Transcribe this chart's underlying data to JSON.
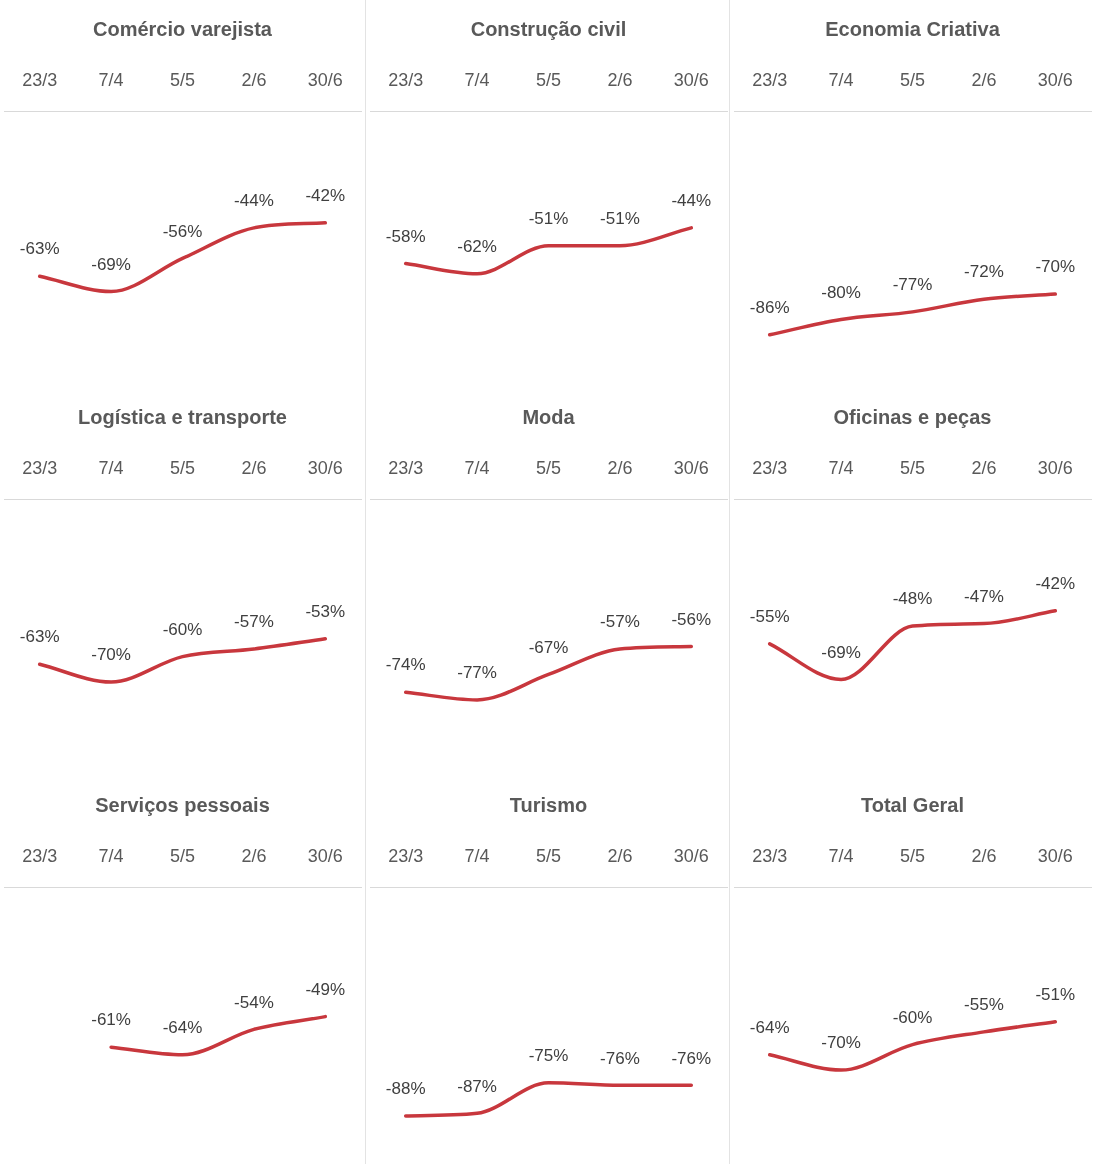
{
  "chart_data": [
    {
      "type": "line",
      "title": "Comércio varejista",
      "categories": [
        "23/3",
        "7/4",
        "5/5",
        "2/6",
        "30/6"
      ],
      "tick_labels": "x",
      "legend": false,
      "series": [
        {
          "color": "#c8373d",
          "values": [
            -63,
            -69,
            -56,
            -44,
            -42
          ],
          "value_labels": [
            "-63%",
            "-69%",
            "-56%",
            "-44%",
            "-42%"
          ]
        }
      ]
    },
    {
      "type": "line",
      "title": "Construção civil",
      "categories": [
        "23/3",
        "7/4",
        "5/5",
        "2/6",
        "30/6"
      ],
      "tick_labels": "x",
      "legend": false,
      "series": [
        {
          "color": "#c8373d",
          "values": [
            -58,
            -62,
            -51,
            -51,
            -44
          ],
          "value_labels": [
            "-58%",
            "-62%",
            "-51%",
            "-51%",
            "-44%"
          ]
        }
      ]
    },
    {
      "type": "line",
      "title": "Economia Criativa",
      "categories": [
        "23/3",
        "7/4",
        "5/5",
        "2/6",
        "30/6"
      ],
      "tick_labels": "x",
      "legend": false,
      "series": [
        {
          "color": "#c8373d",
          "values": [
            -86,
            -80,
            -77,
            -72,
            -70
          ],
          "value_labels": [
            "-86%",
            "-80%",
            "-77%",
            "-72%",
            "-70%"
          ]
        }
      ]
    },
    {
      "type": "line",
      "title": "Logística e transporte",
      "categories": [
        "23/3",
        "7/4",
        "5/5",
        "2/6",
        "30/6"
      ],
      "tick_labels": "x",
      "legend": false,
      "series": [
        {
          "color": "#c8373d",
          "values": [
            -63,
            -70,
            -60,
            -57,
            -53
          ],
          "value_labels": [
            "-63%",
            "-70%",
            "-60%",
            "-57%",
            "-53%"
          ]
        }
      ]
    },
    {
      "type": "line",
      "title": "Moda",
      "categories": [
        "23/3",
        "7/4",
        "5/5",
        "2/6",
        "30/6"
      ],
      "tick_labels": "x",
      "legend": false,
      "series": [
        {
          "color": "#c8373d",
          "values": [
            -74,
            -77,
            -67,
            -57,
            -56
          ],
          "value_labels": [
            "-74%",
            "-77%",
            "-67%",
            "-57%",
            "-56%"
          ]
        }
      ]
    },
    {
      "type": "line",
      "title": "Oficinas e peças",
      "categories": [
        "23/3",
        "7/4",
        "5/5",
        "2/6",
        "30/6"
      ],
      "tick_labels": "x",
      "legend": false,
      "series": [
        {
          "color": "#c8373d",
          "values": [
            -55,
            -69,
            -48,
            -47,
            -42
          ],
          "value_labels": [
            "-55%",
            "-69%",
            "-48%",
            "-47%",
            "-42%"
          ]
        }
      ]
    },
    {
      "type": "line",
      "title": "Serviços pessoais",
      "categories": [
        "23/3",
        "7/4",
        "5/5",
        "2/6",
        "30/6"
      ],
      "tick_labels": "x",
      "legend": false,
      "series": [
        {
          "color": "#c8373d",
          "values": [
            null,
            -61,
            -64,
            -54,
            -49
          ],
          "value_labels": [
            null,
            "-61%",
            "-64%",
            "-54%",
            "-49%"
          ]
        }
      ]
    },
    {
      "type": "line",
      "title": "Turismo",
      "categories": [
        "23/3",
        "7/4",
        "5/5",
        "2/6",
        "30/6"
      ],
      "tick_labels": "x",
      "legend": false,
      "series": [
        {
          "color": "#c8373d",
          "values": [
            -88,
            -87,
            -75,
            -76,
            -76
          ],
          "value_labels": [
            "-88%",
            "-87%",
            "-75%",
            "-76%",
            "-76%"
          ]
        }
      ]
    },
    {
      "type": "line",
      "title": "Total Geral",
      "categories": [
        "23/3",
        "7/4",
        "5/5",
        "2/6",
        "30/6"
      ],
      "tick_labels": "x",
      "legend": false,
      "series": [
        {
          "color": "#c8373d",
          "values": [
            -64,
            -70,
            -60,
            -55,
            -51
          ],
          "value_labels": [
            "-64%",
            "-70%",
            "-60%",
            "-55%",
            "-51%"
          ]
        }
      ]
    }
  ]
}
